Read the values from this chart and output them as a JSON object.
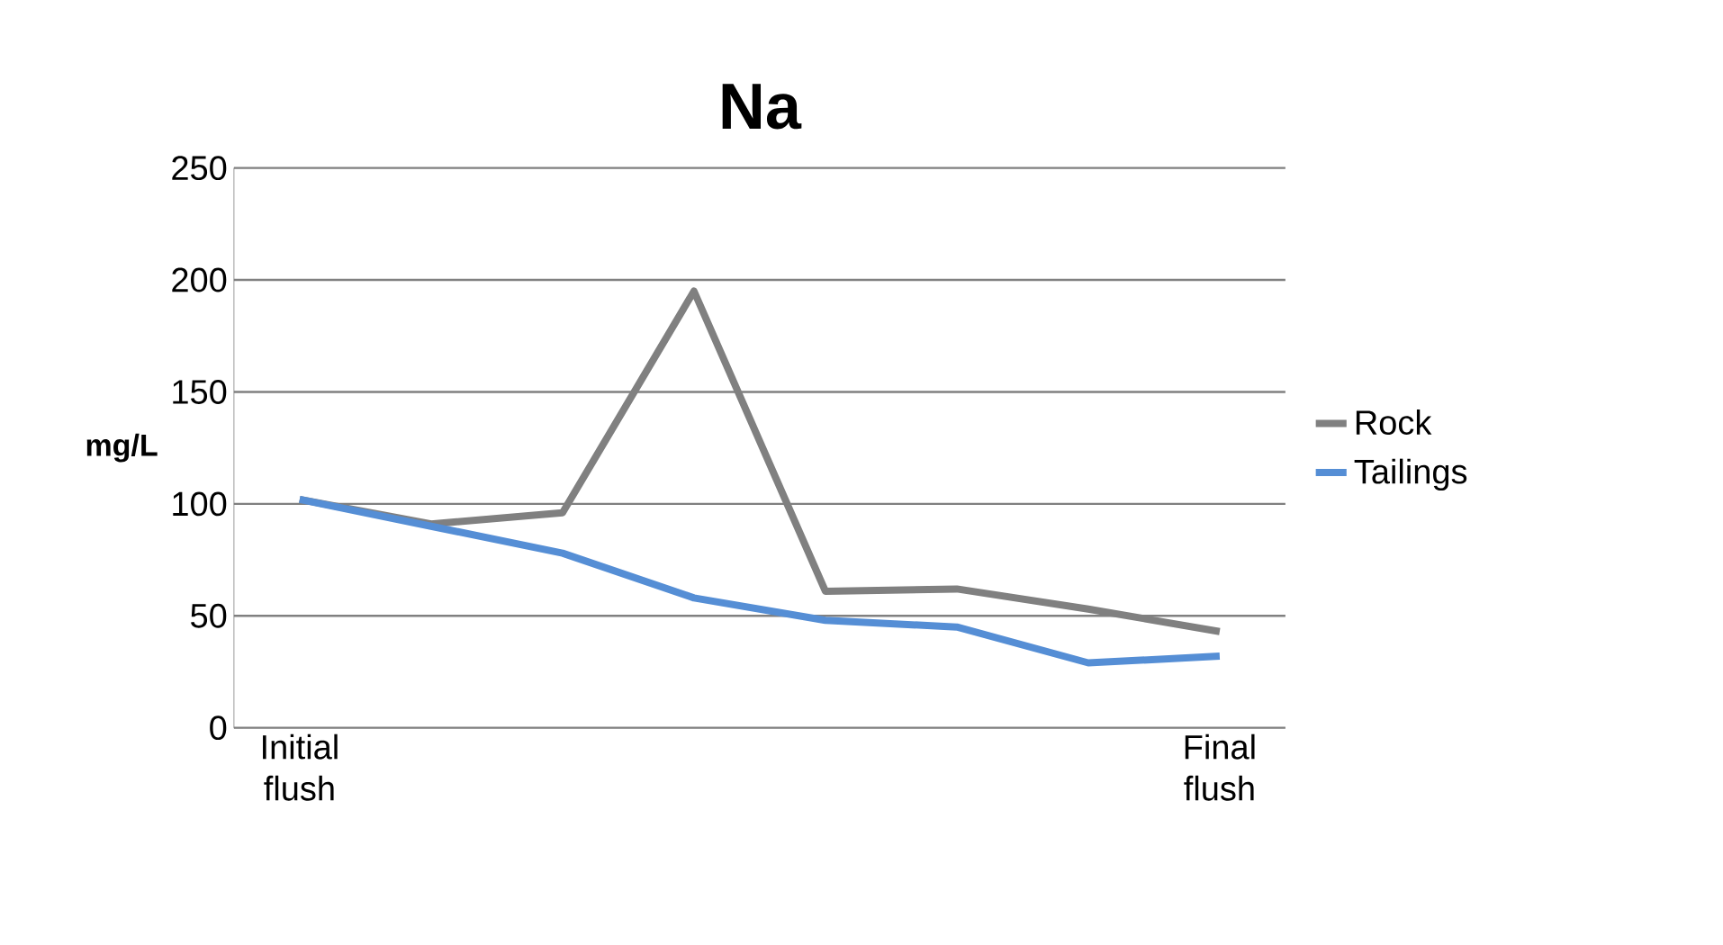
{
  "chart_data": {
    "type": "line",
    "title": "Na",
    "ylabel": "mg/L",
    "categories": [
      "Initial flush",
      null,
      null,
      null,
      null,
      null,
      null,
      "Final flush"
    ],
    "series": [
      {
        "name": "Rock",
        "color": "#808080",
        "values": [
          102,
          91,
          96,
          195,
          61,
          62,
          53,
          43
        ]
      },
      {
        "name": "Tailings",
        "color": "#558ed5",
        "values": [
          102,
          90,
          78,
          58,
          48,
          45,
          29,
          32
        ]
      }
    ],
    "ylim": [
      0,
      250
    ],
    "yticks": [
      0,
      50,
      100,
      150,
      200,
      250
    ],
    "grid": "y",
    "legend": "right",
    "marker": "none",
    "line_style": "solid"
  }
}
